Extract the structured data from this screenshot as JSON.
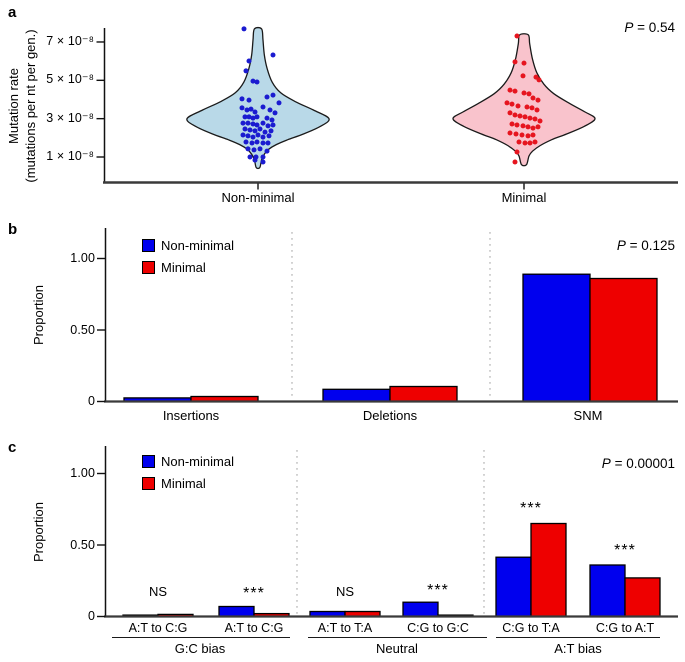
{
  "legend": {
    "items": [
      {
        "label": "Non-minimal",
        "color": "#0000EE"
      },
      {
        "label": "Minimal",
        "color": "#EE0000"
      }
    ]
  },
  "panel_a": {
    "label": "a",
    "p": {
      "symbol": "P",
      "rest": " = 0.54"
    },
    "ylabel_line1": "Mutation rate",
    "ylabel_line2": "(mutations per nt per gen.)",
    "yticks": [
      "7 × 10⁻⁸",
      "5 × 10⁻⁸",
      "3 × 10⁻⁸",
      "1 × 10⁻⁸"
    ],
    "chart_data": {
      "type": "violin",
      "ylabel": "Mutation rate (mutations per nt per gen.)",
      "ytick_values_x1e8": [
        7,
        5,
        3,
        1
      ],
      "ylim_x1e8": [
        0.3,
        8.1
      ],
      "categories": [
        "Non-minimal",
        "Minimal"
      ],
      "series": [
        {
          "name": "Non-minimal",
          "fill": "#b9d9e8",
          "dot_color": "#1b1bd0",
          "shape": [
            [
              7.68,
              0.05
            ],
            [
              7.1,
              0.07
            ],
            [
              6.3,
              0.09
            ],
            [
              5.6,
              0.13
            ],
            [
              4.9,
              0.2
            ],
            [
              4.35,
              0.32
            ],
            [
              3.9,
              0.52
            ],
            [
              3.45,
              0.78
            ],
            [
              3.0,
              1.0
            ],
            [
              2.6,
              0.88
            ],
            [
              2.2,
              0.64
            ],
            [
              1.9,
              0.42
            ],
            [
              1.65,
              0.26
            ],
            [
              1.4,
              0.15
            ],
            [
              1.15,
              0.09
            ],
            [
              0.85,
              0.05
            ],
            [
              0.45,
              0.025
            ]
          ],
          "points": [
            [
              -14,
              7.68
            ],
            [
              15,
              6.32
            ],
            [
              -9,
              6.01
            ],
            [
              -12,
              5.49
            ],
            [
              -5,
              4.96
            ],
            [
              -1,
              4.91
            ],
            [
              -16,
              4.03
            ],
            [
              -9,
              3.97
            ],
            [
              9,
              4.13
            ],
            [
              15,
              4.23
            ],
            [
              21,
              3.82
            ],
            [
              -16,
              3.56
            ],
            [
              -11,
              3.45
            ],
            [
              -7,
              3.5
            ],
            [
              -3,
              3.35
            ],
            [
              5,
              3.61
            ],
            [
              12,
              3.45
            ],
            [
              17,
              3.3
            ],
            [
              -13,
              3.09
            ],
            [
              -9,
              3.09
            ],
            [
              -5,
              3.03
            ],
            [
              -1,
              3.09
            ],
            [
              9,
              3.03
            ],
            [
              14,
              2.93
            ],
            [
              -15,
              2.77
            ],
            [
              -10,
              2.77
            ],
            [
              -5,
              2.72
            ],
            [
              -1,
              2.67
            ],
            [
              5,
              2.77
            ],
            [
              10,
              2.62
            ],
            [
              15,
              2.67
            ],
            [
              -13,
              2.46
            ],
            [
              -8,
              2.41
            ],
            [
              -3,
              2.36
            ],
            [
              2,
              2.46
            ],
            [
              7,
              2.3
            ],
            [
              13,
              2.36
            ],
            [
              -15,
              2.15
            ],
            [
              -10,
              2.1
            ],
            [
              -5,
              2.04
            ],
            [
              0,
              2.15
            ],
            [
              5,
              2.04
            ],
            [
              11,
              2.1
            ],
            [
              -12,
              1.78
            ],
            [
              -6,
              1.73
            ],
            [
              -1,
              1.78
            ],
            [
              5,
              1.73
            ],
            [
              10,
              1.73
            ],
            [
              -10,
              1.42
            ],
            [
              -4,
              1.37
            ],
            [
              2,
              1.42
            ],
            [
              9,
              1.31
            ],
            [
              -8,
              1.0
            ],
            [
              -2,
              1.0
            ],
            [
              5,
              1.0
            ],
            [
              -3,
              0.84
            ],
            [
              5,
              0.74
            ]
          ]
        },
        {
          "name": "Minimal",
          "fill": "#f9c3cc",
          "dot_color": "#e6151f",
          "shape": [
            [
              7.37,
              0.06
            ],
            [
              6.9,
              0.08
            ],
            [
              6.1,
              0.12
            ],
            [
              5.4,
              0.18
            ],
            [
              4.8,
              0.28
            ],
            [
              4.3,
              0.42
            ],
            [
              3.8,
              0.64
            ],
            [
              3.35,
              0.86
            ],
            [
              3.0,
              1.0
            ],
            [
              2.6,
              0.85
            ],
            [
              2.2,
              0.6
            ],
            [
              1.9,
              0.39
            ],
            [
              1.6,
              0.23
            ],
            [
              1.3,
              0.12
            ],
            [
              1.05,
              0.07
            ],
            [
              0.6,
              0.035
            ]
          ],
          "points": [
            [
              -7,
              7.31
            ],
            [
              -9,
              5.96
            ],
            [
              0,
              5.9
            ],
            [
              -1,
              5.23
            ],
            [
              12,
              5.17
            ],
            [
              15,
              5.02
            ],
            [
              -14,
              4.49
            ],
            [
              -9,
              4.44
            ],
            [
              0,
              4.34
            ],
            [
              5,
              4.29
            ],
            [
              9,
              4.08
            ],
            [
              14,
              3.97
            ],
            [
              -17,
              3.82
            ],
            [
              -12,
              3.76
            ],
            [
              -6,
              3.66
            ],
            [
              3,
              3.61
            ],
            [
              8,
              3.56
            ],
            [
              13,
              3.45
            ],
            [
              -14,
              3.3
            ],
            [
              -9,
              3.19
            ],
            [
              -4,
              3.14
            ],
            [
              1,
              3.09
            ],
            [
              6,
              3.03
            ],
            [
              11,
              2.98
            ],
            [
              16,
              2.88
            ],
            [
              -12,
              2.72
            ],
            [
              -7,
              2.67
            ],
            [
              -1,
              2.62
            ],
            [
              4,
              2.57
            ],
            [
              9,
              2.51
            ],
            [
              14,
              2.57
            ],
            [
              -14,
              2.25
            ],
            [
              -8,
              2.2
            ],
            [
              -2,
              2.15
            ],
            [
              4,
              2.1
            ],
            [
              9,
              2.15
            ],
            [
              -5,
              1.78
            ],
            [
              1,
              1.73
            ],
            [
              6,
              1.73
            ],
            [
              11,
              1.78
            ],
            [
              -7,
              1.26
            ],
            [
              -9,
              0.74
            ]
          ]
        }
      ]
    }
  },
  "panel_b": {
    "label": "b",
    "p": {
      "symbol": "P",
      "rest": " = 0.125"
    },
    "ylabel": "Proportion",
    "yticks": [
      "1.00",
      "0.50",
      "0"
    ],
    "chart_data": {
      "type": "bar",
      "title": "",
      "ylabel": "Proportion",
      "ylim": [
        0,
        1.15
      ],
      "ytick_values": [
        1.0,
        0.5,
        0
      ],
      "categories": [
        "Insertions",
        "Deletions",
        "SNM"
      ],
      "series": [
        {
          "name": "Non-minimal",
          "color": "#0000EE",
          "values": [
            0.025,
            0.085,
            0.89
          ]
        },
        {
          "name": "Minimal",
          "color": "#EE0000",
          "values": [
            0.035,
            0.105,
            0.86
          ]
        }
      ],
      "legend_position": "top-left"
    }
  },
  "panel_c": {
    "label": "c",
    "p": {
      "symbol": "P",
      "rest": " = 0.00001"
    },
    "ylabel": "Proportion",
    "yticks": [
      "1.00",
      "0.50",
      "0"
    ],
    "chart_data": {
      "type": "bar",
      "title": "",
      "ylabel": "Proportion",
      "ylim": [
        0,
        1.15
      ],
      "ytick_values": [
        1.0,
        0.5,
        0
      ],
      "categories": [
        "A:T to C:G",
        "A:T to C:G",
        "A:T to T:A",
        "C:G to G:C",
        "C:G to T:A",
        "C:G to A:T"
      ],
      "groups": [
        {
          "label": "G:C bias",
          "span": [
            0,
            1
          ]
        },
        {
          "label": "Neutral",
          "span": [
            2,
            3
          ]
        },
        {
          "label": "A:T bias",
          "span": [
            4,
            5
          ]
        }
      ],
      "significance": [
        "NS",
        "***",
        "NS",
        "***",
        "***",
        "***"
      ],
      "series": [
        {
          "name": "Non-minimal",
          "color": "#0000EE",
          "values": [
            0.01,
            0.07,
            0.035,
            0.1,
            0.415,
            0.36
          ]
        },
        {
          "name": "Minimal",
          "color": "#EE0000",
          "values": [
            0.015,
            0.02,
            0.035,
            0.01,
            0.65,
            0.27
          ]
        }
      ],
      "legend_position": "top-left"
    }
  }
}
